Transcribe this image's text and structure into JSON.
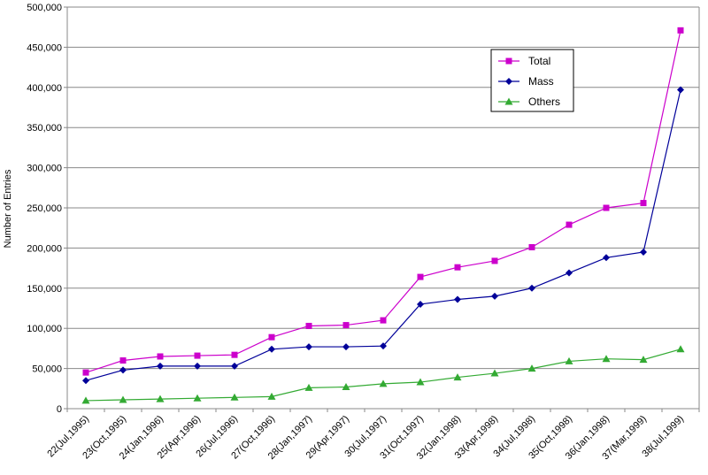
{
  "chart_data": {
    "type": "line",
    "title": "",
    "xlabel": "",
    "ylabel": "Number of Entries",
    "ylim": [
      0,
      500000
    ],
    "yticks": [
      0,
      50000,
      100000,
      150000,
      200000,
      250000,
      300000,
      350000,
      400000,
      450000,
      500000
    ],
    "ytick_labels": [
      "0",
      "50,000",
      "100,000",
      "150,000",
      "200,000",
      "250,000",
      "300,000",
      "350,000",
      "400,000",
      "450,000",
      "500,000"
    ],
    "categories": [
      "22(Jul,1995)",
      "23(Oct,1995)",
      "24(Jan,1996)",
      "25(Apr,1996)",
      "26(Jul,1996)",
      "27(Oct,1996)",
      "28(Jan,1997)",
      "29(Apr,1997)",
      "30(Jul,1997)",
      "31(Oct,1997)",
      "32(Jan,1998)",
      "33(Apr,1998)",
      "34(Jul,1998)",
      "35(Oct,1998)",
      "36(Jan,1998)",
      "37(Mar,1999)",
      "38(Jul,1999)"
    ],
    "series": [
      {
        "name": "Total",
        "color": "#cc00cc",
        "marker": "square",
        "values": [
          45000,
          60000,
          65000,
          66000,
          67000,
          89000,
          103000,
          104000,
          110000,
          164000,
          176000,
          184000,
          201000,
          229000,
          250000,
          256000,
          471000
        ]
      },
      {
        "name": "Mass",
        "color": "#000099",
        "marker": "diamond",
        "values": [
          35000,
          48000,
          53000,
          53000,
          53000,
          74000,
          77000,
          77000,
          78000,
          130000,
          136000,
          140000,
          150000,
          169000,
          188000,
          195000,
          397000
        ]
      },
      {
        "name": "Others",
        "color": "#33aa33",
        "marker": "triangle",
        "values": [
          10000,
          11000,
          12000,
          13000,
          14000,
          15000,
          26000,
          27000,
          31000,
          33000,
          39000,
          44000,
          50000,
          59000,
          62000,
          61000,
          74000
        ]
      }
    ],
    "grid": "horizontal",
    "legend": {
      "position": "top-right"
    },
    "axis_color": "#888888",
    "grid_color": "#888888"
  }
}
